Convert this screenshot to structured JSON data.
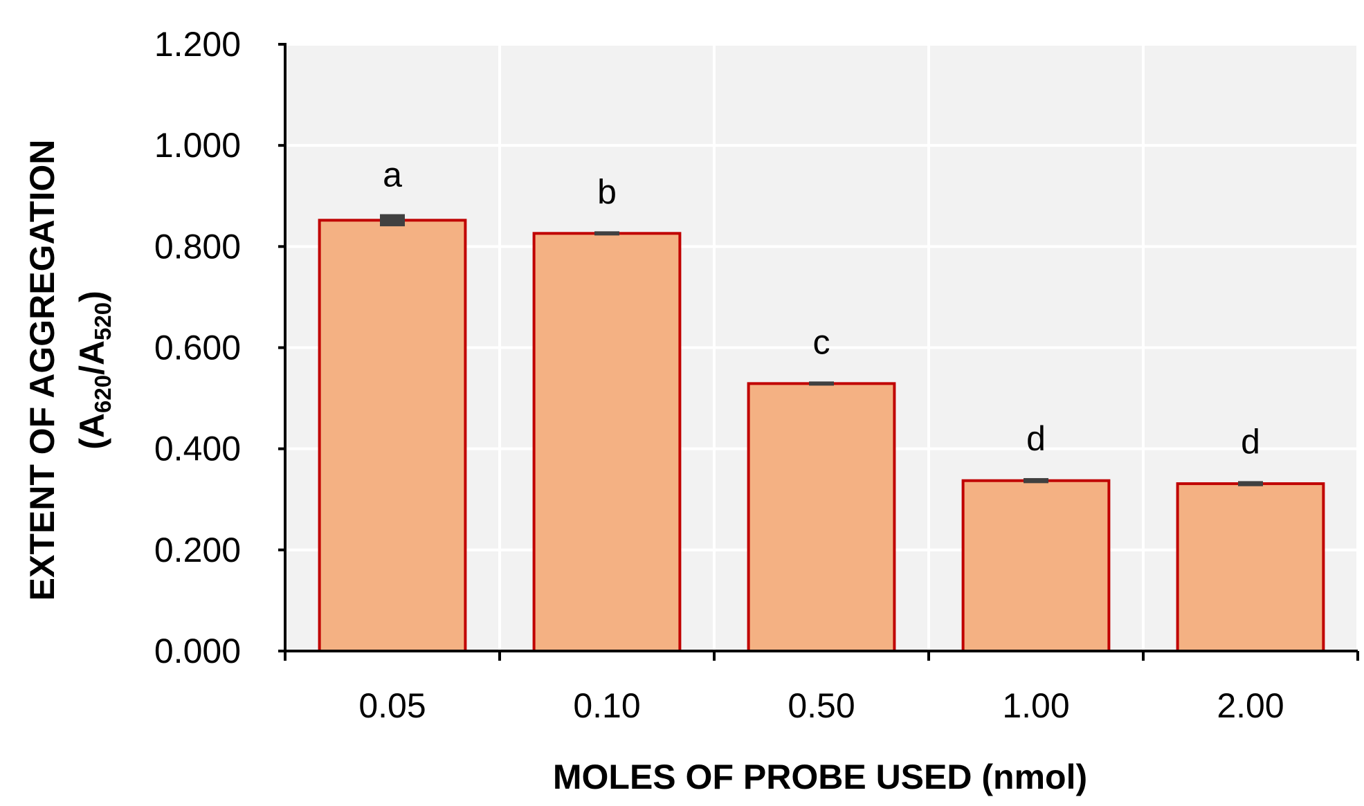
{
  "chart_data": {
    "type": "bar",
    "categories": [
      "0.05",
      "0.10",
      "0.50",
      "1.00",
      "2.00"
    ],
    "values": [
      0.852,
      0.826,
      0.529,
      0.337,
      0.331
    ],
    "errors": [
      0.012,
      0.004,
      0.004,
      0.005,
      0.005
    ],
    "significance_labels": [
      "a",
      "b",
      "c",
      "d",
      "d"
    ],
    "xlabel": "MOLES OF PROBE USED (nmol)",
    "ylabel": {
      "line1": "EXTENT OF AGGREGATION",
      "line2_prefix": "(A",
      "sub1": "620",
      "mid": "/A",
      "sub2": "520",
      "suffix": ")"
    },
    "ylim": [
      0,
      1.2
    ],
    "yticks": [
      "0.000",
      "0.200",
      "0.400",
      "0.600",
      "0.800",
      "1.000",
      "1.200"
    ],
    "grid": true,
    "colors": {
      "bar_fill": "#F4B183",
      "bar_stroke": "#C00000",
      "error_bar": "#404040",
      "plot_bg": "#F2F2F2",
      "grid": "#FFFFFF"
    }
  }
}
